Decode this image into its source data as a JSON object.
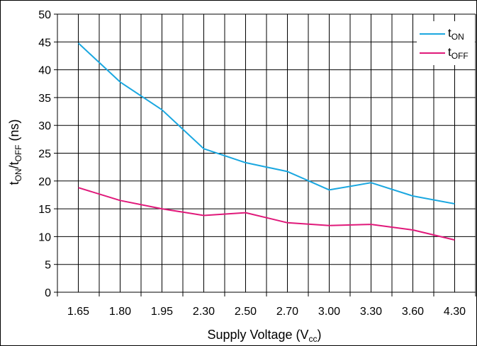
{
  "chart_data": {
    "type": "line",
    "categories": [
      "1.65",
      "1.80",
      "1.95",
      "2.30",
      "2.50",
      "2.70",
      "3.00",
      "3.30",
      "3.60",
      "4.30"
    ],
    "series": [
      {
        "name": "tON",
        "color": "#1aa7e0",
        "values": [
          44.8,
          37.8,
          32.8,
          25.8,
          23.3,
          21.7,
          18.4,
          19.7,
          17.3,
          15.9
        ]
      },
      {
        "name": "tOFF",
        "color": "#e0197a",
        "values": [
          18.8,
          16.5,
          15.0,
          13.8,
          14.3,
          12.5,
          12.0,
          12.2,
          11.2,
          9.4
        ]
      }
    ],
    "ylim": [
      0,
      50
    ],
    "yticks": [
      0,
      5,
      10,
      15,
      20,
      25,
      30,
      35,
      40,
      45,
      50
    ],
    "grid": true,
    "legend_position": "top-right",
    "xlabel": {
      "main": "Supply Voltage (V",
      "sub": "cc",
      "close": ")"
    },
    "ylabel": {
      "p1": "t",
      "s1": "ON",
      "p2": "/t",
      "s2": "OFF",
      "p3": " (ns)"
    },
    "legend": [
      {
        "main": "t",
        "sub": "ON"
      },
      {
        "main": "t",
        "sub": "OFF"
      }
    ]
  }
}
